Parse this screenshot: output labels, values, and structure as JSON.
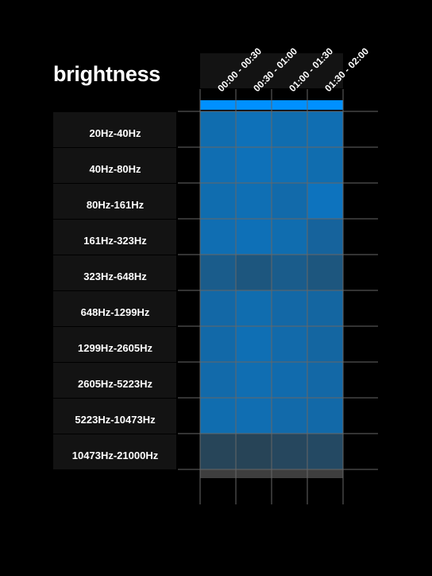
{
  "chart_data": {
    "type": "heatmap",
    "title": "brightness",
    "columns": [
      "00:00 - 00:30",
      "00:30 - 01:00",
      "01:00 - 01:30",
      "01:30 - 02:00"
    ],
    "rows": [
      "20Hz-40Hz",
      "40Hz-80Hz",
      "80Hz-161Hz",
      "161Hz-323Hz",
      "323Hz-648Hz",
      "648Hz-1299Hz",
      "1299Hz-2605Hz",
      "2605Hz-5223Hz",
      "5223Hz-10473Hz",
      "10473Hz-21000Hz"
    ],
    "values": [
      [
        0.7,
        0.74,
        0.7,
        0.71
      ],
      [
        0.71,
        0.74,
        0.72,
        0.7
      ],
      [
        0.7,
        0.72,
        0.68,
        0.76
      ],
      [
        0.71,
        0.73,
        0.7,
        0.62
      ],
      [
        0.55,
        0.5,
        0.55,
        0.5
      ],
      [
        0.66,
        0.7,
        0.66,
        0.64
      ],
      [
        0.67,
        0.72,
        0.68,
        0.64
      ],
      [
        0.68,
        0.71,
        0.69,
        0.66
      ],
      [
        0.7,
        0.71,
        0.68,
        0.67
      ],
      [
        0.35,
        0.34,
        0.37,
        0.39
      ]
    ],
    "colors": {
      "accent": "#0090ff",
      "cell": "#0a78c8",
      "background": "#000000",
      "label_bg": "#131313",
      "grid": "#666666",
      "footer": "#3e3e3e"
    }
  }
}
